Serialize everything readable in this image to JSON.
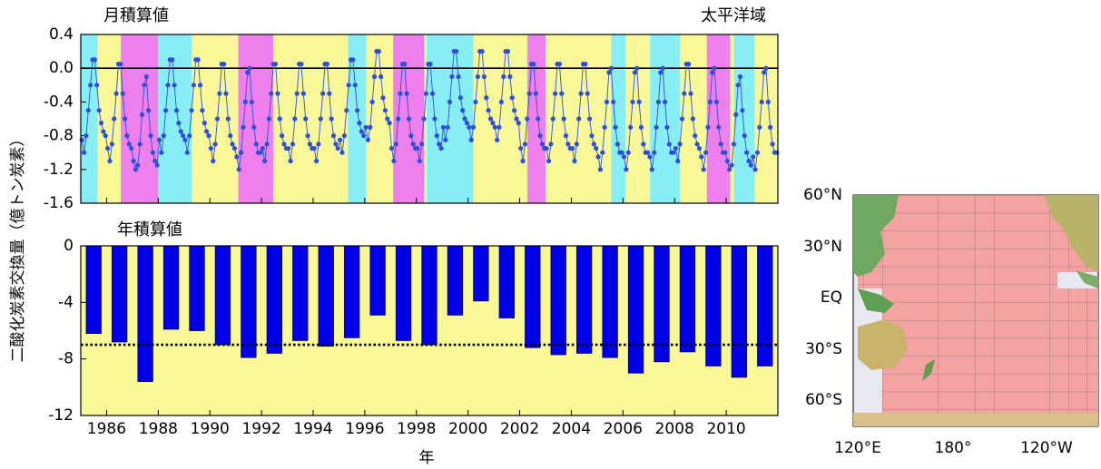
{
  "chart_data": [
    {
      "type": "line",
      "title": "月積算値",
      "annotation": "太平洋域",
      "xlim": [
        1985,
        2012
      ],
      "ylim": [
        -1.6,
        0.4
      ],
      "yticks": [
        0.4,
        {
          "value": 0,
          "label": "0.0"
        },
        -0.4,
        -0.8,
        -1.2,
        -1.6
      ],
      "background": "#f8f898",
      "zero_line": true,
      "color": "#2e4fd6",
      "shading": [
        {
          "start": 1985.0,
          "end": 1985.65,
          "color": "#86eef4"
        },
        {
          "start": 1986.55,
          "end": 1988.0,
          "color": "#ee80ee"
        },
        {
          "start": 1988.0,
          "end": 1989.3,
          "color": "#86eef4"
        },
        {
          "start": 1991.1,
          "end": 1992.45,
          "color": "#ee80ee"
        },
        {
          "start": 1995.35,
          "end": 1996.05,
          "color": "#86eef4"
        },
        {
          "start": 1997.1,
          "end": 1998.3,
          "color": "#ee80ee"
        },
        {
          "start": 1998.4,
          "end": 2000.2,
          "color": "#86eef4"
        },
        {
          "start": 2002.3,
          "end": 2003.0,
          "color": "#ee80ee"
        },
        {
          "start": 2005.55,
          "end": 2006.1,
          "color": "#86eef4"
        },
        {
          "start": 2007.05,
          "end": 2008.2,
          "color": "#86eef4"
        },
        {
          "start": 2009.25,
          "end": 2010.15,
          "color": "#ee80ee"
        },
        {
          "start": 2010.3,
          "end": 2011.1,
          "color": "#86eef4"
        }
      ],
      "x": [
        1985,
        1986,
        1987,
        1988,
        1989,
        1990,
        1991,
        1992,
        1993,
        1994,
        1995,
        1996,
        1997,
        1998,
        1999,
        2000,
        2001,
        2002,
        2003,
        2004,
        2005,
        2006,
        2007,
        2008,
        2009,
        2010,
        2011
      ],
      "values": [
        [
          -0.85,
          -1.0,
          -0.8,
          -0.5,
          -0.2,
          0.1,
          0.1,
          -0.2,
          -0.5,
          -0.65,
          -0.75,
          -0.8
        ],
        [
          -0.95,
          -1.1,
          -0.9,
          -0.6,
          -0.3,
          0.05,
          0.05,
          -0.3,
          -0.6,
          -0.8,
          -0.9,
          -0.95
        ],
        [
          -1.1,
          -1.2,
          -1.15,
          -0.9,
          -0.55,
          -0.2,
          -0.1,
          -0.5,
          -0.8,
          -1.0,
          -1.1,
          -1.15
        ],
        [
          -0.85,
          -1.0,
          -0.8,
          -0.5,
          -0.2,
          0.1,
          0.1,
          -0.2,
          -0.5,
          -0.65,
          -0.75,
          -0.8
        ],
        [
          -0.85,
          -1.0,
          -0.8,
          -0.5,
          -0.2,
          0.1,
          0.1,
          -0.2,
          -0.5,
          -0.65,
          -0.75,
          -0.8
        ],
        [
          -0.95,
          -1.1,
          -0.9,
          -0.6,
          -0.3,
          0.05,
          0.05,
          -0.3,
          -0.6,
          -0.8,
          -0.9,
          -0.95
        ],
        [
          -1.05,
          -1.2,
          -1.0,
          -0.7,
          -0.4,
          -0.05,
          0,
          -0.4,
          -0.7,
          -0.9,
          -1.0,
          -1.0
        ],
        [
          -0.95,
          -1.1,
          -0.9,
          -0.6,
          -0.3,
          0.05,
          0.05,
          -0.3,
          -0.6,
          -0.8,
          -0.9,
          -0.95
        ],
        [
          -0.95,
          -1.1,
          -0.9,
          -0.6,
          -0.3,
          0.05,
          0.05,
          -0.3,
          -0.6,
          -0.8,
          -0.9,
          -0.95
        ],
        [
          -0.95,
          -1.1,
          -0.9,
          -0.6,
          -0.3,
          0.05,
          0.05,
          -0.3,
          -0.6,
          -0.8,
          -0.9,
          -0.95
        ],
        [
          -0.85,
          -1.0,
          -0.8,
          -0.5,
          -0.2,
          0.1,
          0.1,
          -0.2,
          -0.5,
          -0.65,
          -0.75,
          -0.8
        ],
        [
          -0.7,
          -0.85,
          -0.7,
          -0.4,
          -0.1,
          0.2,
          0.2,
          -0.1,
          -0.35,
          -0.5,
          -0.6,
          -0.65
        ],
        [
          -0.95,
          -1.1,
          -0.9,
          -0.6,
          -0.3,
          0.05,
          0.05,
          -0.3,
          -0.6,
          -0.8,
          -0.9,
          -0.95
        ],
        [
          -0.95,
          -1.1,
          -0.9,
          -0.6,
          -0.3,
          0.05,
          0.05,
          -0.3,
          -0.6,
          -0.8,
          -0.9,
          -0.95
        ],
        [
          -0.7,
          -0.85,
          -0.7,
          -0.4,
          -0.1,
          0.2,
          0.2,
          -0.1,
          -0.35,
          -0.5,
          -0.6,
          -0.65
        ],
        [
          -0.7,
          -0.85,
          -0.7,
          -0.4,
          -0.1,
          0.2,
          0.2,
          -0.1,
          -0.35,
          -0.5,
          -0.6,
          -0.65
        ],
        [
          -0.7,
          -0.85,
          -0.7,
          -0.4,
          -0.1,
          0.2,
          0.2,
          -0.1,
          -0.35,
          -0.5,
          -0.6,
          -0.65
        ],
        [
          -0.95,
          -1.1,
          -0.9,
          -0.6,
          -0.3,
          0.05,
          0.05,
          -0.3,
          -0.6,
          -0.8,
          -0.9,
          -0.95
        ],
        [
          -0.95,
          -1.1,
          -0.9,
          -0.6,
          -0.3,
          0.05,
          0.05,
          -0.3,
          -0.6,
          -0.8,
          -0.9,
          -0.95
        ],
        [
          -0.95,
          -1.1,
          -0.9,
          -0.6,
          -0.3,
          0.05,
          0.05,
          -0.3,
          -0.6,
          -0.8,
          -0.9,
          -0.95
        ],
        [
          -1.05,
          -1.2,
          -1.0,
          -0.7,
          -0.4,
          -0.05,
          0,
          -0.4,
          -0.7,
          -0.9,
          -1.0,
          -1.0
        ],
        [
          -1.05,
          -1.2,
          -1.0,
          -0.7,
          -0.4,
          -0.05,
          0,
          -0.4,
          -0.7,
          -0.9,
          -1.0,
          -1.0
        ],
        [
          -1.05,
          -1.2,
          -1.0,
          -0.7,
          -0.4,
          -0.05,
          0,
          -0.4,
          -0.7,
          -0.9,
          -1.0,
          -1.0
        ],
        [
          -0.95,
          -1.1,
          -0.9,
          -0.6,
          -0.3,
          0.05,
          0.05,
          -0.3,
          -0.6,
          -0.8,
          -0.9,
          -0.95
        ],
        [
          -1.05,
          -1.2,
          -1.0,
          -0.7,
          -0.4,
          -0.05,
          0,
          -0.4,
          -0.7,
          -0.9,
          -1.0,
          -1.0
        ],
        [
          -1.1,
          -1.2,
          -1.15,
          -0.9,
          -0.55,
          -0.2,
          -0.1,
          -0.5,
          -0.8,
          -1.0,
          -1.1,
          -1.15
        ],
        [
          -1.05,
          -1.2,
          -1.0,
          -0.7,
          -0.4,
          -0.05,
          0,
          -0.4,
          -0.7,
          -0.9,
          -1.0,
          -1.0
        ]
      ]
    },
    {
      "type": "bar",
      "title": "年積算値",
      "xlabel": "年",
      "ylabel": "二酸化炭素交換量（億トン炭素）",
      "xlim": [
        1985,
        2012
      ],
      "ylim": [
        -12,
        0
      ],
      "yticks": [
        0,
        -4,
        -8,
        -12
      ],
      "xticks": [
        1986,
        1988,
        1990,
        1992,
        1994,
        1996,
        1998,
        2000,
        2002,
        2004,
        2006,
        2008,
        2010
      ],
      "background": "#f8f898",
      "color": "#0000e8",
      "reference_line": -7.0,
      "x": [
        1985,
        1986,
        1987,
        1988,
        1989,
        1990,
        1991,
        1992,
        1993,
        1994,
        1995,
        1996,
        1997,
        1998,
        1999,
        2000,
        2001,
        2002,
        2003,
        2004,
        2005,
        2006,
        2007,
        2008,
        2009,
        2010,
        2011
      ],
      "values": [
        -6.2,
        -6.8,
        -9.6,
        -5.9,
        -6.0,
        -7.0,
        -7.9,
        -7.6,
        -6.7,
        -7.1,
        -6.5,
        -4.9,
        -6.7,
        -7.0,
        -4.9,
        -3.9,
        -5.1,
        -7.2,
        -7.7,
        -7.6,
        -7.9,
        -9.0,
        -8.2,
        -7.5,
        -8.5,
        -9.3,
        -8.5
      ]
    }
  ],
  "map": {
    "lat_labels": [
      "60°N",
      "30°N",
      "EQ",
      "30°S",
      "60°S"
    ],
    "lon_labels": [
      "120°E",
      "180°",
      "120°W"
    ]
  }
}
